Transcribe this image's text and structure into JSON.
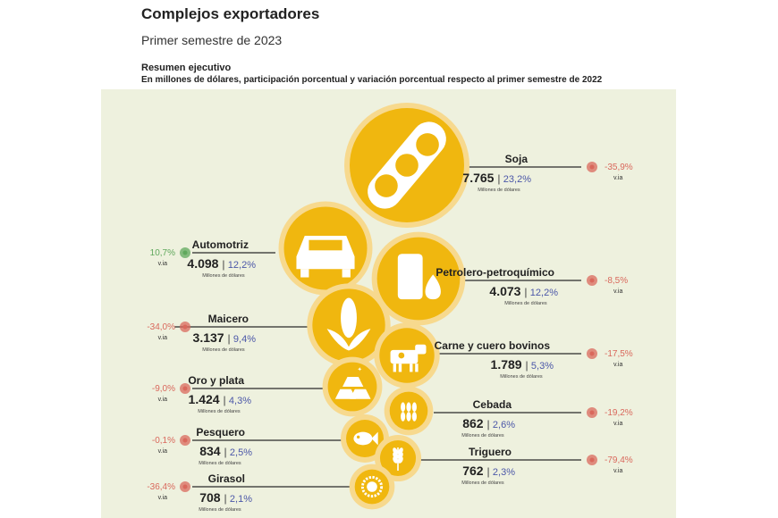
{
  "header": {
    "title": "Complejos exportadores",
    "subtitle": "Primer semestre de 2023",
    "section_title": "Resumen ejecutivo",
    "section_subtitle": "En millones de dólares, participación porcentual y variación porcentual respecto al primer semestre de 2022"
  },
  "colors": {
    "panel": "#eef1de",
    "bubble": "#f0b70f",
    "halo": "#f7d98e",
    "positive": "#5fa85c",
    "negative": "#d9685c",
    "share": "#4b57a8",
    "line": "#2a2a2a"
  },
  "common": {
    "unit_label": "Millones de dólares",
    "yoy_label": "v.ia"
  },
  "chart_data": {
    "type": "bubble",
    "title": "Complejos exportadores",
    "unit": "Millones de dólares",
    "items": [
      {
        "name": "Soja",
        "value": 7765,
        "value_label": "7.765",
        "share_label": "23,2%",
        "variation": -35.9,
        "variation_label": "-35,9%",
        "icon": "soybean-pod-icon"
      },
      {
        "name": "Automotriz",
        "value": 4098,
        "value_label": "4.098",
        "share_label": "12,2%",
        "variation": 10.7,
        "variation_label": "10,7%",
        "icon": "car-icon"
      },
      {
        "name": "Petrolero-petroquímico",
        "value": 4073,
        "value_label": "4.073",
        "share_label": "12,2%",
        "variation": -8.5,
        "variation_label": "-8,5%",
        "icon": "oil-barrel-icon"
      },
      {
        "name": "Maicero",
        "value": 3137,
        "value_label": "3.137",
        "share_label": "9,4%",
        "variation": -34.0,
        "variation_label": "-34,0%",
        "icon": "corn-icon"
      },
      {
        "name": "Carne y cuero bovinos",
        "value": 1789,
        "value_label": "1.789",
        "share_label": "5,3%",
        "variation": -17.5,
        "variation_label": "-17,5%",
        "icon": "cow-icon"
      },
      {
        "name": "Oro y plata",
        "value": 1424,
        "value_label": "1.424",
        "share_label": "4,3%",
        "variation": -9.0,
        "variation_label": "-9,0%",
        "icon": "gold-bars-icon"
      },
      {
        "name": "Cebada",
        "value": 862,
        "value_label": "862",
        "share_label": "2,6%",
        "variation": -19.2,
        "variation_label": "-19,2%",
        "icon": "barley-icon"
      },
      {
        "name": "Pesquero",
        "value": 834,
        "value_label": "834",
        "share_label": "2,5%",
        "variation": -0.1,
        "variation_label": "-0,1%",
        "icon": "fish-icon"
      },
      {
        "name": "Triguero",
        "value": 762,
        "value_label": "762",
        "share_label": "2,3%",
        "variation": -79.4,
        "variation_label": "-79,4%",
        "icon": "wheat-icon"
      },
      {
        "name": "Girasol",
        "value": 708,
        "value_label": "708",
        "share_label": "2,1%",
        "variation": -36.4,
        "variation_label": "-36,4%",
        "icon": "sunflower-icon"
      }
    ]
  }
}
